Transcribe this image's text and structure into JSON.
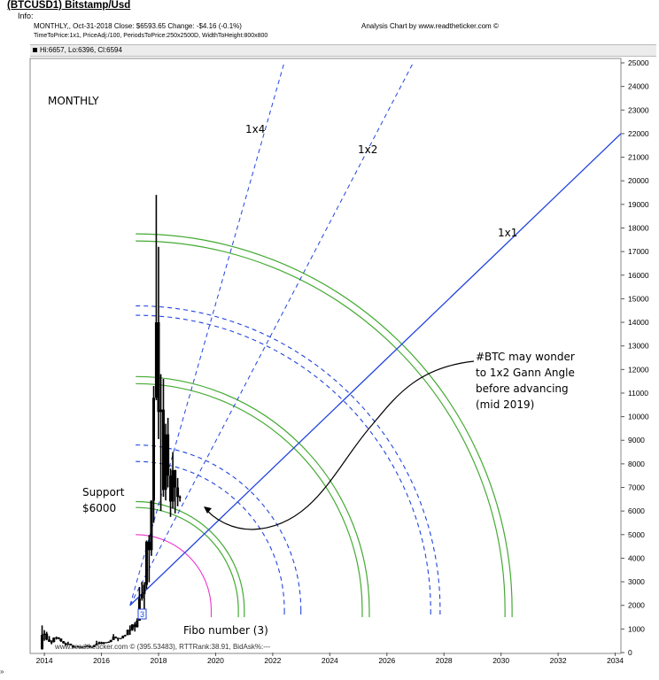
{
  "header": {
    "title": "(BTCUSD1) Bitstamp/Usd",
    "info_label": "Info:",
    "line1": "MONTHLY,, Oct-31-2018  Close: $6593.65  Change: -$4.16  (-0.1%)",
    "line2": "TimeToPrice:1x1, PriceAdj:/100, PeriodsToPrice:250x2500D, WidthToHeight:800x800",
    "analysis": "Analysis Chart by www.readtheticker.com ©",
    "hilo": "Hi:6657, Lo:6396, Cl:6594"
  },
  "chart_data": {
    "type": "candlestick",
    "period": "MONTHLY",
    "x_axis": {
      "range": [
        2013.5,
        2034.2
      ],
      "ticks": [
        "2014",
        "2016",
        "2018",
        "2020",
        "2022",
        "2024",
        "2026",
        "2028",
        "2030",
        "2032",
        "2034"
      ]
    },
    "y_axis": {
      "range": [
        0,
        25000
      ],
      "position": "right",
      "ticks": [
        "0",
        "1000",
        "2000",
        "3000",
        "4000",
        "5000",
        "6000",
        "7000",
        "8000",
        "9000",
        "10000",
        "11000",
        "12000",
        "13000",
        "14000",
        "15000",
        "16000",
        "17000",
        "18000",
        "19000",
        "20000",
        "21000",
        "22000",
        "23000",
        "24000",
        "25000"
      ]
    },
    "grid": false,
    "candles": [
      {
        "t": 2013.92,
        "o": 150,
        "h": 1150,
        "l": 120,
        "c": 750
      },
      {
        "t": 2014.0,
        "o": 750,
        "h": 950,
        "l": 500,
        "c": 800
      },
      {
        "t": 2014.08,
        "o": 800,
        "h": 880,
        "l": 520,
        "c": 550
      },
      {
        "t": 2014.17,
        "o": 550,
        "h": 700,
        "l": 450,
        "c": 460
      },
      {
        "t": 2014.25,
        "o": 460,
        "h": 520,
        "l": 350,
        "c": 450
      },
      {
        "t": 2014.33,
        "o": 450,
        "h": 640,
        "l": 430,
        "c": 630
      },
      {
        "t": 2014.42,
        "o": 630,
        "h": 680,
        "l": 550,
        "c": 640
      },
      {
        "t": 2014.5,
        "o": 640,
        "h": 650,
        "l": 560,
        "c": 590
      },
      {
        "t": 2014.58,
        "o": 590,
        "h": 600,
        "l": 450,
        "c": 480
      },
      {
        "t": 2014.67,
        "o": 480,
        "h": 490,
        "l": 380,
        "c": 390
      },
      {
        "t": 2014.75,
        "o": 390,
        "h": 420,
        "l": 280,
        "c": 340
      },
      {
        "t": 2014.83,
        "o": 340,
        "h": 460,
        "l": 320,
        "c": 370
      },
      {
        "t": 2014.92,
        "o": 370,
        "h": 380,
        "l": 300,
        "c": 315
      },
      {
        "t": 2015.0,
        "o": 315,
        "h": 320,
        "l": 170,
        "c": 220
      },
      {
        "t": 2015.08,
        "o": 220,
        "h": 270,
        "l": 200,
        "c": 250
      },
      {
        "t": 2015.17,
        "o": 250,
        "h": 300,
        "l": 240,
        "c": 245
      },
      {
        "t": 2015.25,
        "o": 245,
        "h": 260,
        "l": 210,
        "c": 235
      },
      {
        "t": 2015.33,
        "o": 235,
        "h": 250,
        "l": 225,
        "c": 230
      },
      {
        "t": 2015.42,
        "o": 230,
        "h": 265,
        "l": 220,
        "c": 263
      },
      {
        "t": 2015.5,
        "o": 263,
        "h": 320,
        "l": 255,
        "c": 284
      },
      {
        "t": 2015.58,
        "o": 284,
        "h": 285,
        "l": 200,
        "c": 230
      },
      {
        "t": 2015.67,
        "o": 230,
        "h": 245,
        "l": 225,
        "c": 236
      },
      {
        "t": 2015.75,
        "o": 236,
        "h": 330,
        "l": 235,
        "c": 312
      },
      {
        "t": 2015.83,
        "o": 312,
        "h": 500,
        "l": 300,
        "c": 378
      },
      {
        "t": 2015.92,
        "o": 378,
        "h": 465,
        "l": 350,
        "c": 430
      },
      {
        "t": 2016.0,
        "o": 430,
        "h": 460,
        "l": 355,
        "c": 370
      },
      {
        "t": 2016.08,
        "o": 370,
        "h": 440,
        "l": 365,
        "c": 437
      },
      {
        "t": 2016.17,
        "o": 437,
        "h": 440,
        "l": 400,
        "c": 416
      },
      {
        "t": 2016.25,
        "o": 416,
        "h": 470,
        "l": 412,
        "c": 448
      },
      {
        "t": 2016.33,
        "o": 448,
        "h": 540,
        "l": 440,
        "c": 530
      },
      {
        "t": 2016.42,
        "o": 530,
        "h": 780,
        "l": 525,
        "c": 670
      },
      {
        "t": 2016.5,
        "o": 670,
        "h": 680,
        "l": 600,
        "c": 624
      },
      {
        "t": 2016.58,
        "o": 624,
        "h": 625,
        "l": 480,
        "c": 575
      },
      {
        "t": 2016.67,
        "o": 575,
        "h": 615,
        "l": 570,
        "c": 609
      },
      {
        "t": 2016.75,
        "o": 609,
        "h": 720,
        "l": 605,
        "c": 700
      },
      {
        "t": 2016.83,
        "o": 700,
        "h": 755,
        "l": 680,
        "c": 742
      },
      {
        "t": 2016.92,
        "o": 742,
        "h": 970,
        "l": 740,
        "c": 963
      },
      {
        "t": 2017.0,
        "o": 963,
        "h": 1150,
        "l": 750,
        "c": 965
      },
      {
        "t": 2017.08,
        "o": 965,
        "h": 1200,
        "l": 920,
        "c": 1190
      },
      {
        "t": 2017.17,
        "o": 1190,
        "h": 1290,
        "l": 890,
        "c": 1080
      },
      {
        "t": 2017.25,
        "o": 1080,
        "h": 1450,
        "l": 1060,
        "c": 1350
      },
      {
        "t": 2017.33,
        "o": 1350,
        "h": 2780,
        "l": 1350,
        "c": 2300
      },
      {
        "t": 2017.42,
        "o": 2300,
        "h": 3000,
        "l": 2200,
        "c": 2480
      },
      {
        "t": 2017.5,
        "o": 2480,
        "h": 2990,
        "l": 1840,
        "c": 2870
      },
      {
        "t": 2017.58,
        "o": 2870,
        "h": 4750,
        "l": 2700,
        "c": 4700
      },
      {
        "t": 2017.67,
        "o": 4700,
        "h": 4980,
        "l": 2980,
        "c": 4340
      },
      {
        "t": 2017.75,
        "o": 4340,
        "h": 6450,
        "l": 4100,
        "c": 6440
      },
      {
        "t": 2017.83,
        "o": 6440,
        "h": 11300,
        "l": 5500,
        "c": 10800
      },
      {
        "t": 2017.92,
        "o": 10800,
        "h": 19400,
        "l": 10700,
        "c": 14000
      },
      {
        "t": 2018.0,
        "o": 14000,
        "h": 17200,
        "l": 9050,
        "c": 10200
      },
      {
        "t": 2018.08,
        "o": 10200,
        "h": 11800,
        "l": 6000,
        "c": 10300
      },
      {
        "t": 2018.17,
        "o": 10300,
        "h": 11600,
        "l": 6600,
        "c": 6900
      },
      {
        "t": 2018.25,
        "o": 6900,
        "h": 9700,
        "l": 6450,
        "c": 9250
      },
      {
        "t": 2018.33,
        "o": 9250,
        "h": 9950,
        "l": 7000,
        "c": 7500
      },
      {
        "t": 2018.42,
        "o": 7500,
        "h": 7800,
        "l": 5750,
        "c": 6400
      },
      {
        "t": 2018.5,
        "o": 6400,
        "h": 8500,
        "l": 6100,
        "c": 7730
      },
      {
        "t": 2018.58,
        "o": 7730,
        "h": 7750,
        "l": 5900,
        "c": 7000
      },
      {
        "t": 2018.67,
        "o": 7000,
        "h": 7400,
        "l": 6200,
        "c": 6600
      },
      {
        "t": 2018.75,
        "o": 6600,
        "h": 6660,
        "l": 6400,
        "c": 6594
      }
    ],
    "gann_origin": {
      "t": 2017.0,
      "p": 2000
    },
    "gann_lines": [
      {
        "label": "1x1",
        "style": "solid",
        "end": {
          "t": 2034.2,
          "p": 22000
        }
      },
      {
        "label": "1x2",
        "style": "dashed",
        "end": {
          "t": 2026.92,
          "p": 25000
        }
      },
      {
        "label": "1x4",
        "style": "dashed",
        "end": {
          "t": 2022.4,
          "p": 25000
        }
      }
    ],
    "arc_center": {
      "t": 2017.2,
      "p": 1800
    },
    "green_arcs_top": [
      6400,
      6150,
      11700,
      11400,
      17750,
      17450
    ],
    "blue_dashed_arcs_top": [
      8800,
      8100,
      14700,
      14300
    ],
    "magenta_arc_top": 5000,
    "annotations": {
      "period": "MONTHLY",
      "l1x4": "1x4",
      "l1x2": "1x2",
      "l1x1": "1x1",
      "note_1": "#BTC may wonder",
      "note_2": "to 1x2 Gann Angle",
      "note_3": "before advancing",
      "note_4": "(mid 2019)",
      "support_1": "Support",
      "support_2": "$6000",
      "fibo": "Fibo number (3)",
      "fibo_marker": "3"
    },
    "colors": {
      "candle": "#000000",
      "gann": "#2244dd",
      "green": "#44aa33",
      "magenta": "#ee33cc",
      "curve": "#000000"
    }
  },
  "footer": {
    "credit": "www.readtheticker.com © (395.53483), RTTRank:38.91, BidAsk%:---",
    "corner": "»"
  }
}
